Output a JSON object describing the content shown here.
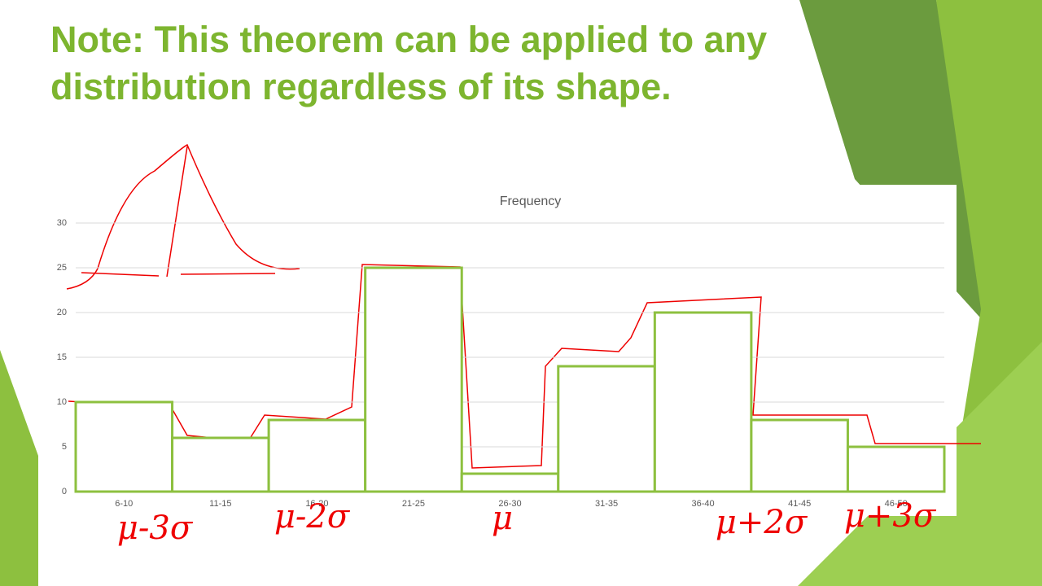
{
  "slide_title_lines": [
    "Note: This theorem can be applied to any",
    "distribution regardless of its shape."
  ],
  "chart_data": {
    "type": "bar",
    "title": "Frequency",
    "categories": [
      "6-10",
      "11-15",
      "16-20",
      "21-25",
      "26-30",
      "31-35",
      "36-40",
      "41-45",
      "46-50"
    ],
    "values": [
      10,
      6,
      8,
      25,
      2,
      14,
      20,
      8,
      5
    ],
    "color": "#8dc03f",
    "ylim": [
      0,
      30
    ],
    "yticks": [
      0,
      5,
      10,
      15,
      20,
      25,
      30
    ],
    "grid": true,
    "annotations": [
      "μ-3σ",
      "μ-2σ",
      "μ",
      "μ+2σ",
      "μ+3σ"
    ]
  }
}
